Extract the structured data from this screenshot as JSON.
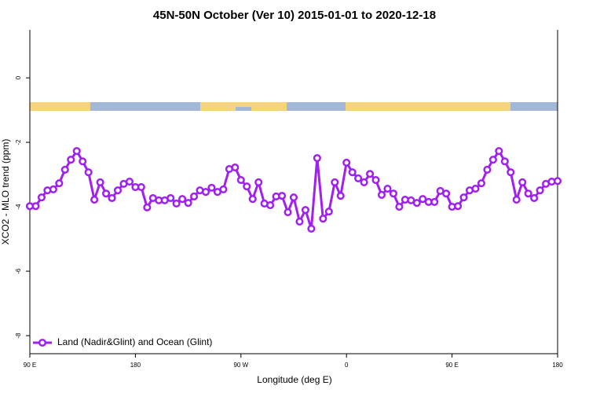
{
  "chart_data": {
    "type": "line",
    "title": "45N-50N October (Ver 10)   2015-01-01 to 2020-12-18",
    "x_label": "Longitude (deg E)",
    "y_label": "XCO2 - MLO trend (ppm)",
    "x": [
      90,
      95,
      100,
      105,
      110,
      115,
      120,
      125,
      130,
      135,
      140,
      145,
      150,
      155,
      160,
      165,
      170,
      175,
      180,
      185,
      190,
      195,
      200,
      205,
      210,
      215,
      220,
      225,
      230,
      235,
      240,
      245,
      250,
      255,
      260,
      265,
      270,
      275,
      280,
      285,
      290,
      295,
      300,
      305,
      310,
      315,
      320,
      325,
      330,
      335,
      340,
      345,
      350,
      355,
      360,
      365,
      370,
      375,
      380,
      385,
      390,
      395,
      400,
      405,
      410,
      415,
      420,
      425,
      430,
      435,
      440,
      445,
      450,
      455,
      460,
      465,
      470,
      475,
      480,
      485,
      490,
      495,
      500,
      505,
      510,
      515,
      520,
      525,
      530,
      535,
      540
    ],
    "series": [
      {
        "name": "Land (Nadir&Glint) and Ocean (Glint)",
        "color": "#a020f0",
        "values": [
          -3.98,
          -3.98,
          -3.71,
          -3.49,
          -3.46,
          -3.27,
          -2.85,
          -2.54,
          -2.27,
          -2.59,
          -2.93,
          -3.78,
          -3.24,
          -3.59,
          -3.73,
          -3.49,
          -3.29,
          -3.22,
          -3.39,
          -3.39,
          -4.02,
          -3.73,
          -3.8,
          -3.8,
          -3.73,
          -3.9,
          -3.76,
          -3.88,
          -3.68,
          -3.49,
          -3.54,
          -3.41,
          -3.54,
          -3.46,
          -2.83,
          -2.78,
          -3.17,
          -3.37,
          -3.76,
          -3.24,
          -3.9,
          -3.95,
          -3.68,
          -3.66,
          -4.17,
          -3.71,
          -4.46,
          -4.1,
          -4.68,
          -2.49,
          -4.37,
          -4.15,
          -3.24,
          -3.66,
          -2.63,
          -2.93,
          -3.12,
          -3.24,
          -2.98,
          -3.17,
          -3.63,
          -3.44,
          -3.59,
          -4.0,
          -3.78,
          -3.8,
          -3.88,
          -3.76,
          -3.85,
          -3.85,
          -3.51,
          -3.59,
          -4.0,
          -3.98,
          -3.71,
          -3.49,
          -3.44,
          -3.27,
          -2.85,
          -2.54,
          -2.27,
          -2.59,
          -2.93,
          -3.78,
          -3.24,
          -3.59,
          -3.73,
          -3.49,
          -3.29,
          -3.22,
          -3.2
        ]
      }
    ],
    "xlim": [
      90,
      540
    ],
    "xticks": [
      {
        "value": 90,
        "label": "90 E"
      },
      180,
      {
        "value": 270,
        "label": "90 W"
      },
      {
        "value": 360,
        "label": "0"
      },
      {
        "value": 450,
        "label": "90 E"
      },
      {
        "value": 540,
        "label": "180"
      }
    ],
    "ylim": [
      -8.56,
      1.49
    ],
    "yticks": [
      0,
      -2,
      -4,
      -6,
      -8
    ],
    "legend": "bottom-left"
  }
}
